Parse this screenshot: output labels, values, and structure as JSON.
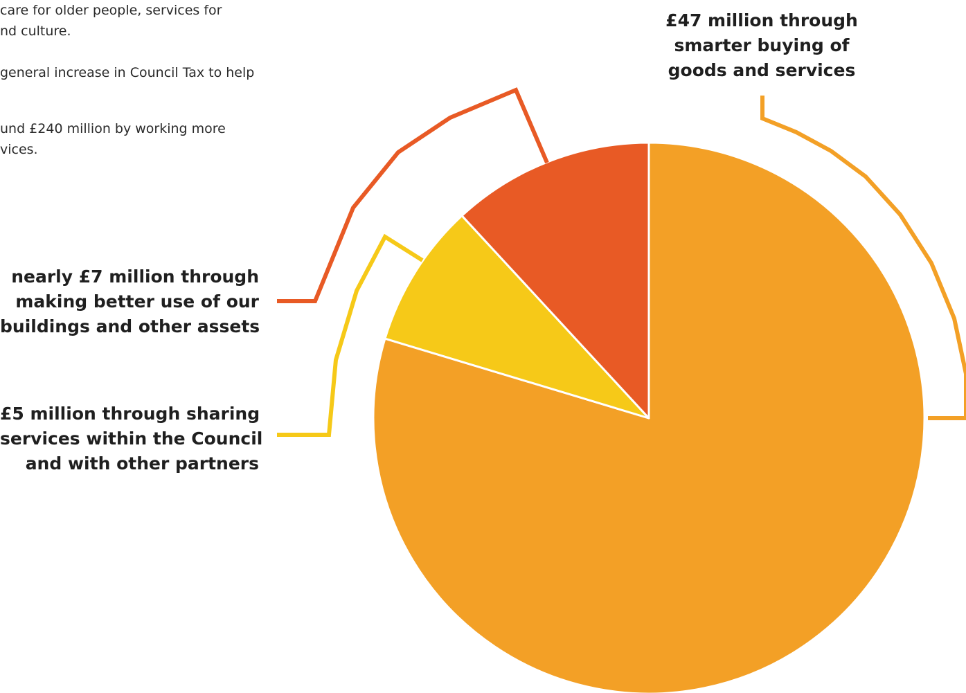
{
  "intro_text": [
    "care for older people, services for",
    "nd culture.",
    "general increase in Council Tax to help",
    "und £240 million by working more",
    "vices."
  ],
  "chart_data": {
    "type": "pie",
    "slices": [
      {
        "key": "goods",
        "value": 47,
        "color": "#F3A026",
        "label_lines": [
          "£47 million through",
          "smarter buying of",
          "goods and services"
        ]
      },
      {
        "key": "sharing",
        "value": 5,
        "color": "#F6C918",
        "label_lines": [
          "£5 million through sharing",
          "services within the Council",
          "and with other partners"
        ]
      },
      {
        "key": "buildings",
        "value": 7,
        "color": "#E85A25",
        "label_lines": [
          "nearly £7 million through",
          "making better use of our",
          "buildings and other assets"
        ]
      }
    ],
    "start_angle_deg": 0,
    "direction": "clockwise"
  }
}
